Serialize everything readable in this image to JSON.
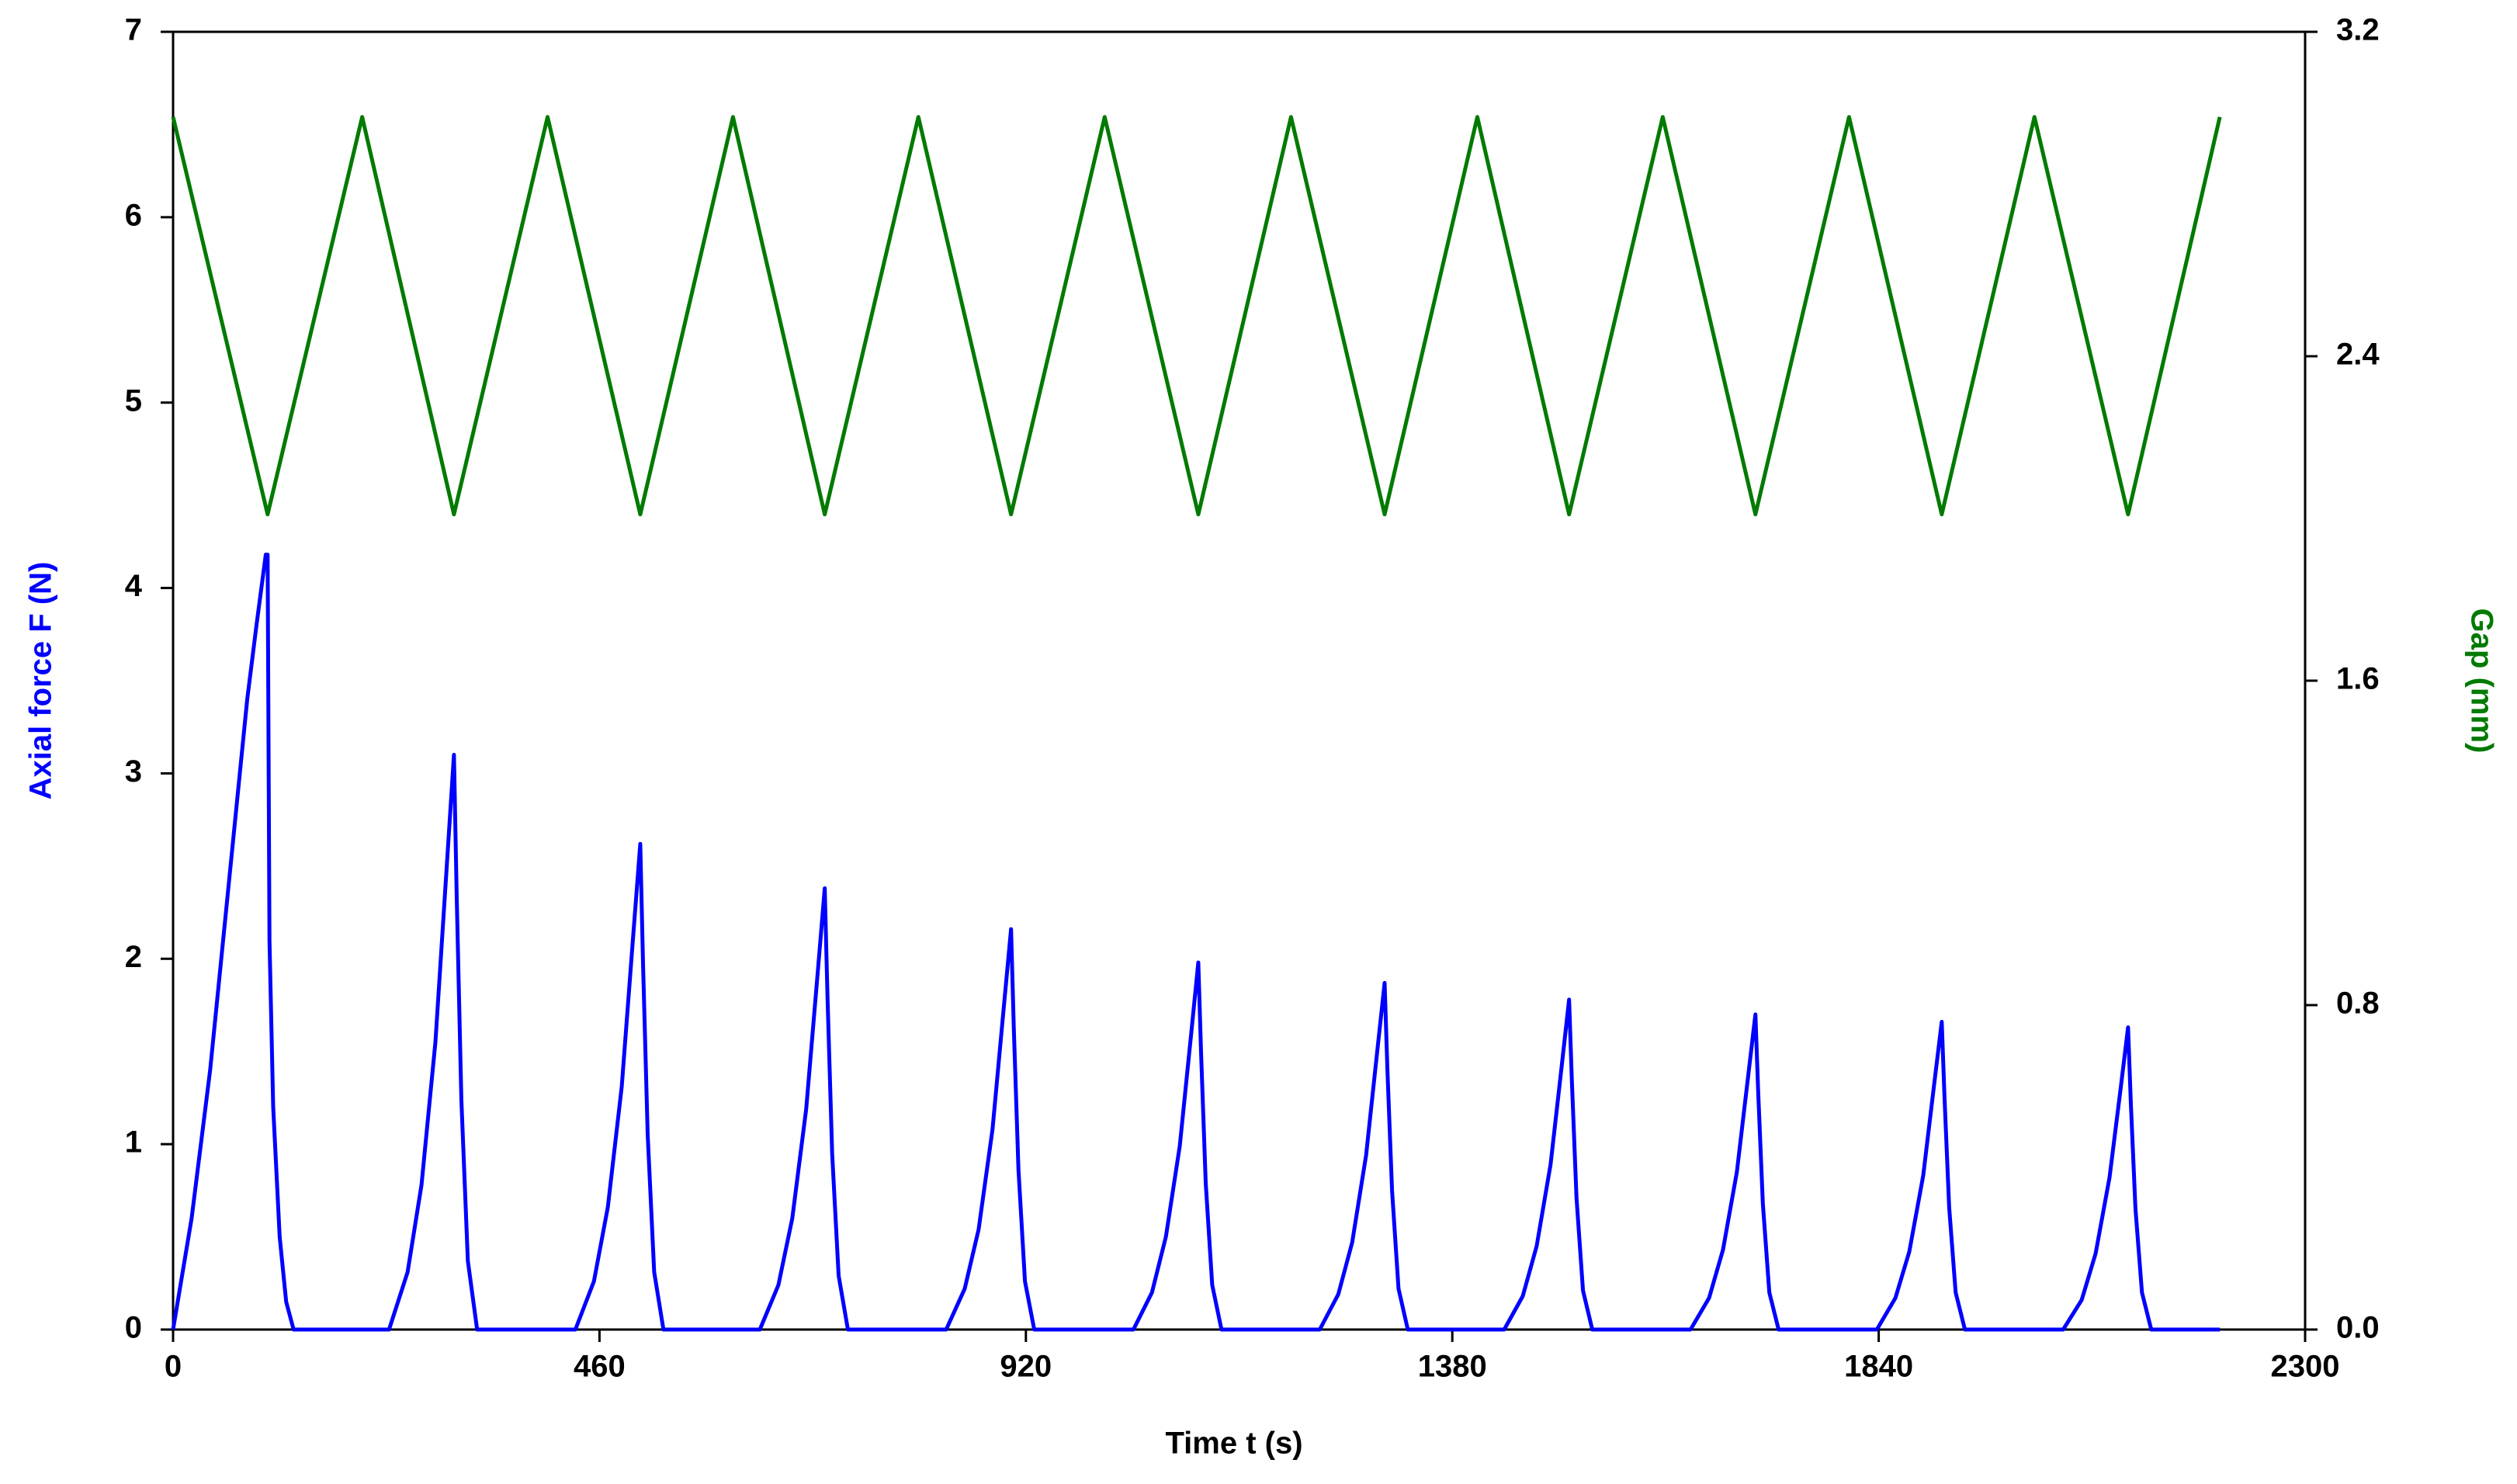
{
  "chart_data": {
    "type": "line",
    "x_label": "Time t (s)",
    "y_label": "Axial force F (N)",
    "y2_label": "Gap (mm)",
    "xlim": [
      0,
      2300
    ],
    "xticks": [
      0,
      460,
      920,
      1380,
      1840,
      2300
    ],
    "ylim": [
      0,
      7
    ],
    "yticks": [
      0,
      1,
      2,
      3,
      4,
      5,
      6,
      7
    ],
    "y2lim": [
      0,
      3.2
    ],
    "y2ticks": [
      {
        "value": 0,
        "label": "0.0"
      },
      0.8,
      1.6,
      2.4,
      3.2
    ],
    "grid": false,
    "series": [
      {
        "name": "Axial force F (N)",
        "color": "#0000ff",
        "axis": "y",
        "x": [
          0,
          10,
          20,
          30,
          40,
          50,
          60,
          70,
          80,
          90,
          100,
          102,
          104,
          108,
          115,
          122,
          130,
          233,
          253,
          268,
          283,
          295,
          303,
          306,
          311,
          318,
          328,
          434,
          454,
          469,
          484,
          496,
          504,
          507,
          512,
          519,
          529,
          633,
          653,
          668,
          683,
          695,
          703,
          706,
          711,
          718,
          728,
          834,
          854,
          869,
          884,
          896,
          904,
          907,
          912,
          919,
          929,
          1036,
          1056,
          1071,
          1086,
          1098,
          1106,
          1109,
          1114,
          1121,
          1131,
          1237,
          1257,
          1272,
          1287,
          1299,
          1307,
          1310,
          1315,
          1322,
          1332,
          1436,
          1456,
          1471,
          1486,
          1498,
          1506,
          1509,
          1514,
          1521,
          1531,
          1637,
          1657,
          1672,
          1687,
          1699,
          1707,
          1710,
          1715,
          1722,
          1732,
          1838,
          1858,
          1873,
          1888,
          1900,
          1908,
          1911,
          1916,
          1923,
          1933,
          2039,
          2059,
          2074,
          2089,
          2101,
          2109,
          2112,
          2117,
          2124,
          2134,
          2208
        ],
        "values": [
          0,
          0.3,
          0.6,
          1.0,
          1.4,
          1.9,
          2.4,
          2.9,
          3.4,
          3.8,
          4.18,
          4.18,
          2.1,
          1.2,
          0.5,
          0.15,
          0,
          0,
          0.31,
          0.78,
          1.55,
          2.48,
          3.1,
          2.33,
          1.24,
          0.37,
          0,
          0,
          0.26,
          0.66,
          1.31,
          2.1,
          2.62,
          1.97,
          1.05,
          0.31,
          0,
          0,
          0.24,
          0.6,
          1.19,
          1.9,
          2.38,
          1.79,
          0.95,
          0.29,
          0,
          0,
          0.22,
          0.54,
          1.08,
          1.73,
          2.16,
          1.62,
          0.86,
          0.26,
          0,
          0,
          0.2,
          0.5,
          0.99,
          1.58,
          1.98,
          1.49,
          0.79,
          0.24,
          0,
          0,
          0.19,
          0.47,
          0.94,
          1.5,
          1.87,
          1.4,
          0.75,
          0.22,
          0,
          0,
          0.18,
          0.45,
          0.89,
          1.42,
          1.78,
          1.34,
          0.71,
          0.21,
          0,
          0,
          0.17,
          0.43,
          0.85,
          1.36,
          1.7,
          1.28,
          0.68,
          0.2,
          0,
          0,
          0.17,
          0.42,
          0.83,
          1.33,
          1.66,
          1.25,
          0.66,
          0.2,
          0,
          0,
          0.16,
          0.41,
          0.82,
          1.3,
          1.63,
          1.22,
          0.65,
          0.2,
          0,
          0
        ]
      },
      {
        "name": "Gap (mm)",
        "color": "#007a00",
        "axis": "y2",
        "x": [
          0,
          102,
          204,
          303,
          404,
          504,
          604,
          703,
          804,
          904,
          1005,
          1106,
          1206,
          1307,
          1407,
          1506,
          1607,
          1707,
          1808,
          1908,
          2008,
          2109,
          2208
        ],
        "values": [
          2.99,
          2.01,
          2.99,
          2.01,
          2.99,
          2.01,
          2.99,
          2.01,
          2.99,
          2.01,
          2.99,
          2.01,
          2.99,
          2.01,
          2.99,
          2.01,
          2.99,
          2.01,
          2.99,
          2.01,
          2.99,
          2.01,
          2.99
        ]
      }
    ]
  }
}
